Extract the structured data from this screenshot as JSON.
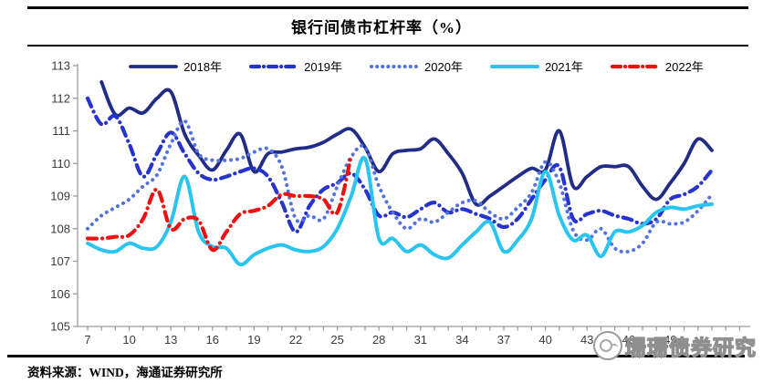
{
  "title": "银行间债市杠杆率（%）",
  "source_note": "资料来源：WIND，海通证券研究所",
  "watermark": {
    "text": "珊珊债券研究"
  },
  "chart_data": {
    "type": "line",
    "xlabel": "",
    "ylabel": "",
    "ylim": [
      105,
      113
    ],
    "y_ticks": [
      105,
      106,
      107,
      108,
      109,
      110,
      111,
      112,
      113
    ],
    "x_tick_labels": [
      7,
      10,
      13,
      16,
      19,
      22,
      25,
      28,
      31,
      34,
      37,
      40,
      43,
      46,
      49
    ],
    "x": [
      7,
      8,
      9,
      10,
      11,
      12,
      13,
      14,
      15,
      16,
      17,
      18,
      19,
      20,
      21,
      22,
      23,
      24,
      25,
      26,
      27,
      28,
      29,
      30,
      31,
      32,
      33,
      34,
      35,
      36,
      37,
      38,
      39,
      40,
      41,
      42,
      43,
      44,
      45,
      46,
      47,
      48,
      49,
      50,
      51,
      52
    ],
    "legend_position": "top",
    "grid": false,
    "series": [
      {
        "name": "2018年",
        "color": "#202C85",
        "style": "solid",
        "width": 3.8,
        "values": [
          null,
          112.5,
          111.5,
          111.7,
          111.55,
          112.0,
          112.2,
          110.9,
          110.25,
          109.8,
          110.4,
          110.9,
          109.75,
          110.3,
          110.35,
          110.45,
          110.5,
          110.65,
          110.9,
          111.05,
          110.5,
          109.75,
          110.3,
          110.4,
          110.45,
          110.75,
          110.3,
          109.7,
          108.75,
          109.0,
          109.3,
          109.6,
          109.85,
          109.8,
          111.0,
          109.3,
          109.6,
          109.9,
          109.9,
          109.9,
          109.3,
          108.9,
          109.4,
          110.0,
          110.75,
          110.4
        ]
      },
      {
        "name": "2019年",
        "color": "#2633CC",
        "style": "dashdot",
        "width": 4.2,
        "values": [
          112.0,
          111.2,
          111.45,
          110.6,
          109.6,
          110.3,
          110.95,
          110.3,
          109.7,
          109.5,
          109.6,
          109.75,
          109.85,
          109.6,
          108.8,
          107.9,
          108.7,
          109.2,
          109.4,
          109.7,
          109.2,
          108.4,
          108.5,
          108.35,
          108.6,
          108.8,
          108.5,
          108.6,
          108.45,
          108.3,
          108.05,
          108.3,
          108.9,
          109.5,
          109.9,
          108.3,
          108.45,
          108.55,
          108.4,
          108.3,
          108.15,
          108.3,
          108.9,
          109.05,
          109.3,
          109.8
        ]
      },
      {
        "name": "2020年",
        "color": "#5272E0",
        "style": "dotted",
        "width": 4.0,
        "values": [
          108.0,
          108.4,
          108.65,
          108.9,
          109.3,
          109.65,
          110.6,
          111.3,
          110.3,
          110.1,
          110.1,
          110.15,
          110.35,
          110.45,
          109.9,
          108.3,
          108.4,
          108.3,
          109.3,
          110.2,
          110.5,
          109.3,
          108.5,
          108.0,
          108.3,
          108.2,
          108.5,
          108.8,
          108.85,
          108.5,
          108.3,
          108.65,
          109.1,
          110.05,
          109.4,
          107.95,
          107.65,
          108.0,
          107.4,
          107.3,
          107.55,
          108.2,
          108.15,
          108.2,
          108.55,
          109.05
        ]
      },
      {
        "name": "2021年",
        "color": "#2AC4F0",
        "style": "solid",
        "width": 4.0,
        "values": [
          107.55,
          107.35,
          107.3,
          107.55,
          107.4,
          107.45,
          108.2,
          109.6,
          107.9,
          107.45,
          107.4,
          106.9,
          107.2,
          107.4,
          107.5,
          107.35,
          107.3,
          107.45,
          108.0,
          109.0,
          110.15,
          107.7,
          107.7,
          107.3,
          107.5,
          107.2,
          107.1,
          107.5,
          107.9,
          108.2,
          107.3,
          107.65,
          108.3,
          109.75,
          108.4,
          107.65,
          107.8,
          107.15,
          107.9,
          107.9,
          108.1,
          108.5,
          108.65,
          108.6,
          108.7,
          108.75
        ]
      },
      {
        "name": "2022年",
        "color": "#EF1010",
        "style": "dashdot",
        "width": 4.2,
        "values": [
          107.7,
          107.7,
          107.75,
          107.8,
          108.3,
          109.2,
          108.0,
          108.3,
          108.25,
          107.35,
          107.9,
          108.45,
          108.55,
          108.7,
          109.05,
          109.0,
          109.0,
          108.9,
          108.5,
          110.25,
          null,
          null,
          null,
          null,
          null,
          null,
          null,
          null,
          null,
          null,
          null,
          null,
          null,
          null,
          null,
          null,
          null,
          null,
          null,
          null,
          null,
          null,
          null,
          null,
          null,
          null
        ]
      }
    ]
  }
}
